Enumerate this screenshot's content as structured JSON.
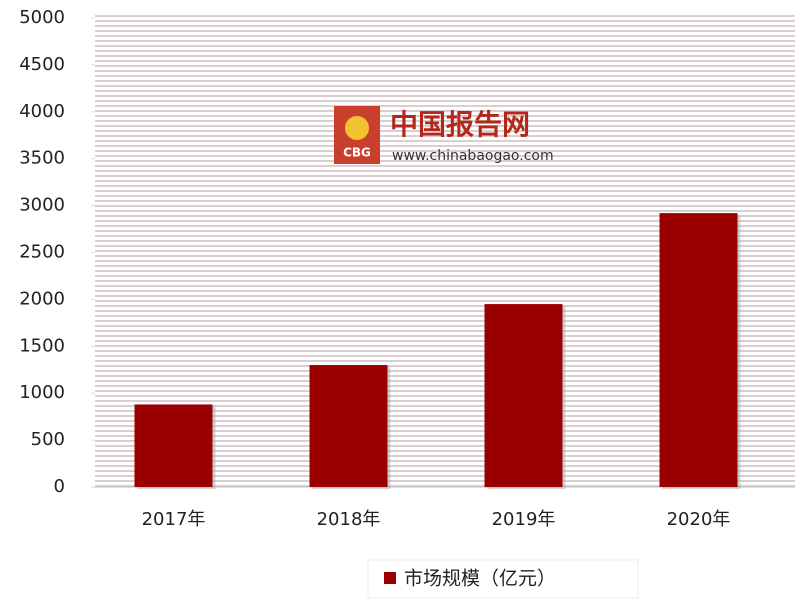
{
  "chart_data": {
    "type": "bar",
    "categories": [
      "2017年",
      "2018年",
      "2019年",
      "2020年"
    ],
    "series": [
      {
        "name": "市场规模（亿元）",
        "color": "#9b0000",
        "values": [
          880,
          1300,
          1950,
          2920
        ]
      }
    ],
    "ylim": [
      0,
      5000
    ],
    "yticks": [
      0,
      500,
      1000,
      1500,
      2000,
      2500,
      3000,
      3500,
      4000,
      4500,
      5000
    ],
    "legend": "bottom"
  },
  "watermark": {
    "logo": "CBG",
    "title": "中国报告网",
    "url": "www.chinabaogao.com"
  }
}
